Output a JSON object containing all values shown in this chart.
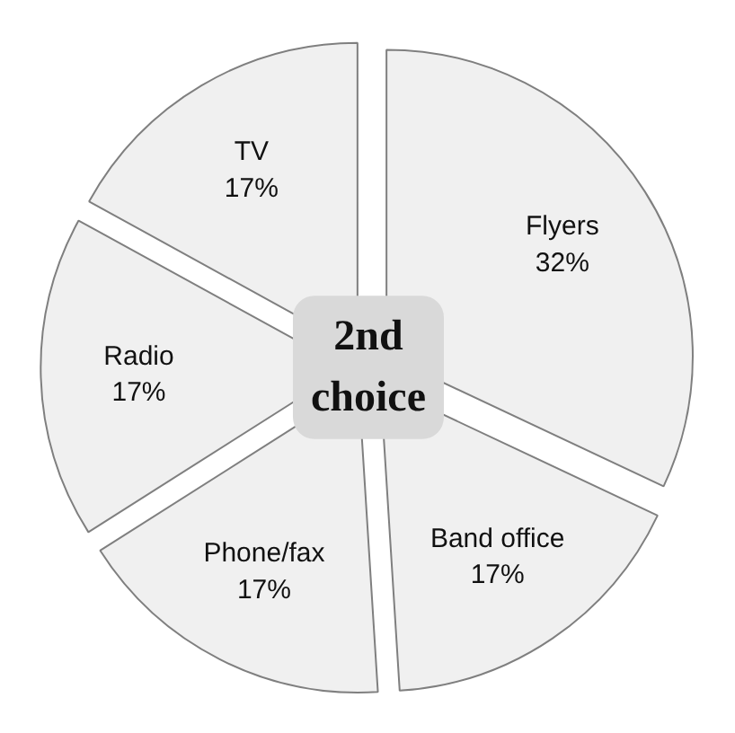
{
  "chart_data": {
    "type": "pie",
    "categories": [
      "Flyers",
      "Band office",
      "Phone/fax",
      "Radio",
      "TV"
    ],
    "values": [
      32,
      17,
      17,
      17,
      17
    ],
    "colors": [
      "#f0f0f0",
      "#f0f0f0",
      "#f0f0f0",
      "#f0f0f0",
      "#f0f0f0"
    ],
    "value_labels": [
      "32%",
      "17%",
      "17%",
      "17%",
      "17%"
    ],
    "annotations": [
      "2nd choice"
    ],
    "legend": false
  }
}
